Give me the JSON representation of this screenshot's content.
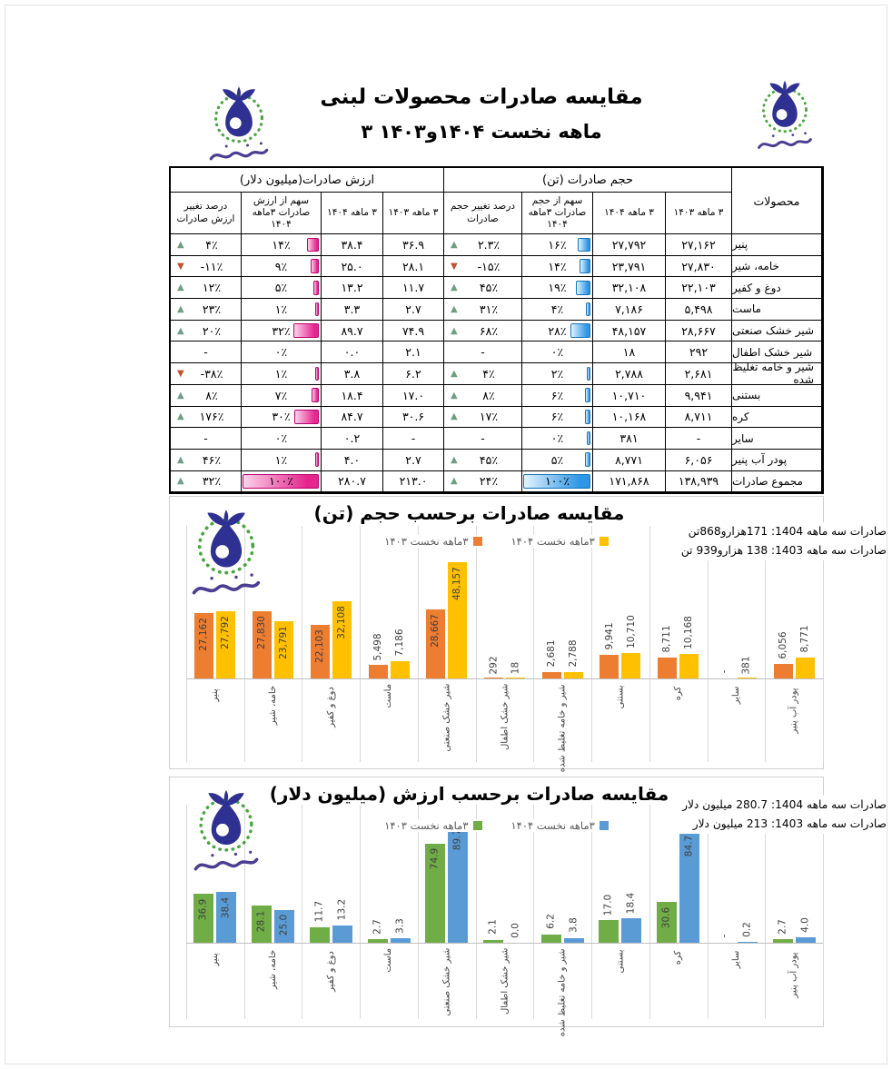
{
  "page": {
    "title_line1": "مقایسه صادرات محصولات لبنی",
    "title_line2": "۳ ماهه نخست ۱۴۰۴و۱۴۰۳"
  },
  "colors": {
    "orange_1403": "#ED7D31",
    "yellow_1404": "#FFC000",
    "green_1403": "#70AD47",
    "blue_1404": "#5B9BD5",
    "table_value_bar_pink": "#E6258F",
    "table_volume_bar_blue": "#3FA7EA",
    "up_triangle": "#6F9E83",
    "down_triangle": "#C0522D"
  },
  "table": {
    "group_headers": {
      "value": "ارزش صادرات(میلیون دلار)",
      "volume": "حجم صادرات (تن)",
      "products": "محصولات"
    },
    "col_headers": {
      "value_change": "درصد تغییر ارزش صادرات",
      "value_share": "سهم از ارزش صادرات ۳ماهه ۱۴۰۴",
      "value_1404": "۳ ماهه ۱۴۰۴",
      "value_1403": "۳ ماهه ۱۴۰۳",
      "volume_change": "درصد تغییر حجم صادرات",
      "volume_share": "سهم از حجم صادرات ۳ماهه ۱۴۰۴",
      "volume_1404": "۳ ماهه ۱۴۰۴",
      "volume_1403": "۳ ماهه ۱۴۰۳"
    },
    "rows": [
      {
        "product": "پنیر",
        "value_change": {
          "dir": "up",
          "text": "۴٪"
        },
        "value_share": {
          "text": "۱۴٪",
          "bar": 14
        },
        "value_1404": "۳۸.۴",
        "value_1403": "۳۶.۹",
        "volume_change": {
          "dir": "up",
          "text": "۲.۳٪"
        },
        "volume_share": {
          "text": "۱۶٪",
          "bar": 16
        },
        "volume_1404": "۲۷,۷۹۲",
        "volume_1403": "۲۷,۱۶۲",
        "total": false
      },
      {
        "product": "خامه، شیر",
        "value_change": {
          "dir": "down",
          "text": "-۱۱٪"
        },
        "value_share": {
          "text": "۹٪",
          "bar": 9
        },
        "value_1404": "۲۵.۰",
        "value_1403": "۲۸.۱",
        "volume_change": {
          "dir": "down",
          "text": "-۱۵٪"
        },
        "volume_share": {
          "text": "۱۴٪",
          "bar": 14
        },
        "volume_1404": "۲۳,۷۹۱",
        "volume_1403": "۲۷,۸۳۰",
        "total": false
      },
      {
        "product": "دوغ و کفیر",
        "value_change": {
          "dir": "up",
          "text": "۱۲٪"
        },
        "value_share": {
          "text": "۵٪",
          "bar": 5
        },
        "value_1404": "۱۳.۲",
        "value_1403": "۱۱.۷",
        "volume_change": {
          "dir": "up",
          "text": "۴۵٪"
        },
        "volume_share": {
          "text": "۱۹٪",
          "bar": 19
        },
        "volume_1404": "۳۲,۱۰۸",
        "volume_1403": "۲۲,۱۰۳",
        "total": false
      },
      {
        "product": "ماست",
        "value_change": {
          "dir": "up",
          "text": "۲۳٪"
        },
        "value_share": {
          "text": "۱٪",
          "bar": 1
        },
        "value_1404": "۳.۳",
        "value_1403": "۲.۷",
        "volume_change": {
          "dir": "up",
          "text": "۳۱٪"
        },
        "volume_share": {
          "text": "۴٪",
          "bar": 4
        },
        "volume_1404": "۷,۱۸۶",
        "volume_1403": "۵,۴۹۸",
        "total": false
      },
      {
        "product": "شیر خشک صنعتی",
        "value_change": {
          "dir": "up",
          "text": "۲۰٪"
        },
        "value_share": {
          "text": "۳۲٪",
          "bar": 32
        },
        "value_1404": "۸۹.۷",
        "value_1403": "۷۴.۹",
        "volume_change": {
          "dir": "up",
          "text": "۶۸٪"
        },
        "volume_share": {
          "text": "۲۸٪",
          "bar": 28
        },
        "volume_1404": "۴۸,۱۵۷",
        "volume_1403": "۲۸,۶۶۷",
        "total": false
      },
      {
        "product": "شیر خشک اطفال",
        "value_change": {
          "dir": null,
          "text": "-"
        },
        "value_share": {
          "text": "۰٪",
          "bar": null
        },
        "value_1404": "۰.۰",
        "value_1403": "۲.۱",
        "volume_change": {
          "dir": null,
          "text": "-"
        },
        "volume_share": {
          "text": "۰٪",
          "bar": null
        },
        "volume_1404": "۱۸",
        "volume_1403": "۲۹۲",
        "total": false
      },
      {
        "product": "شیر و خامه تغلیظ شده",
        "value_change": {
          "dir": "down",
          "text": "-۳۸٪"
        },
        "value_share": {
          "text": "۱٪",
          "bar": 1
        },
        "value_1404": "۳.۸",
        "value_1403": "۶.۲",
        "volume_change": {
          "dir": "up",
          "text": "۴٪"
        },
        "volume_share": {
          "text": "۲٪",
          "bar": 2
        },
        "volume_1404": "۲,۷۸۸",
        "volume_1403": "۲,۶۸۱",
        "total": false
      },
      {
        "product": "بستنی",
        "value_change": {
          "dir": "up",
          "text": "۸٪"
        },
        "value_share": {
          "text": "۷٪",
          "bar": 7
        },
        "value_1404": "۱۸.۴",
        "value_1403": "۱۷.۰",
        "volume_change": {
          "dir": "up",
          "text": "۸٪"
        },
        "volume_share": {
          "text": "۶٪",
          "bar": 6
        },
        "volume_1404": "۱۰,۷۱۰",
        "volume_1403": "۹,۹۴۱",
        "total": false
      },
      {
        "product": "کره",
        "value_change": {
          "dir": "up",
          "text": "۱۷۶٪"
        },
        "value_share": {
          "text": "۳۰٪",
          "bar": 30
        },
        "value_1404": "۸۴.۷",
        "value_1403": "۳۰.۶",
        "volume_change": {
          "dir": "up",
          "text": "۱۷٪"
        },
        "volume_share": {
          "text": "۶٪",
          "bar": 6
        },
        "volume_1404": "۱۰,۱۶۸",
        "volume_1403": "۸,۷۱۱",
        "total": false
      },
      {
        "product": "سایر",
        "value_change": {
          "dir": null,
          "text": "-"
        },
        "value_share": {
          "text": "۰٪",
          "bar": null
        },
        "value_1404": "۰.۲",
        "value_1403": "-",
        "volume_change": {
          "dir": null,
          "text": "-"
        },
        "volume_share": {
          "text": "۰٪",
          "bar": 0.5
        },
        "volume_1404": "۳۸۱",
        "volume_1403": "-",
        "total": false
      },
      {
        "product": "پودر آب پنیر",
        "value_change": {
          "dir": "up",
          "text": "۴۶٪"
        },
        "value_share": {
          "text": "۱٪",
          "bar": 1
        },
        "value_1404": "۴.۰",
        "value_1403": "۲.۷",
        "volume_change": {
          "dir": "up",
          "text": "۴۵٪"
        },
        "volume_share": {
          "text": "۵٪",
          "bar": 5
        },
        "volume_1404": "۸,۷۷۱",
        "volume_1403": "۶,۰۵۶",
        "total": false
      },
      {
        "product": "مجموع صادرات",
        "value_change": {
          "dir": "up",
          "text": "۳۲٪"
        },
        "value_share": {
          "text": "۱۰۰٪",
          "bar": 100
        },
        "value_1404": "۲۸۰.۷",
        "value_1403": "۲۱۳.۰",
        "volume_change": {
          "dir": "up",
          "text": "۲۴٪"
        },
        "volume_share": {
          "text": "۱۰۰٪",
          "bar": 100
        },
        "volume_1404": "۱۷۱,۸۶۸",
        "volume_1403": "۱۳۸,۹۳۹",
        "total": true
      }
    ]
  },
  "chart_data": [
    {
      "type": "bar",
      "title": "مقایسه صادرات برحسب حجم (تن)",
      "categories": [
        "پنیر",
        "خامه، شیر",
        "دوغ و کفیر",
        "ماست",
        "شیر خشک صنعتی",
        "شیر خشک اطفال",
        "شیر و خامه تغلیظ شده",
        "بستنی",
        "کره",
        "سایر",
        "پودر آب پنیر"
      ],
      "series": [
        {
          "name": "۳ماهه نخست ۱۴۰۳",
          "color": "#ED7D31",
          "values": [
            27162,
            27830,
            22103,
            5498,
            28667,
            292,
            2681,
            9941,
            8711,
            null,
            6056
          ],
          "labels": [
            "27,162",
            "27,830",
            "22,103",
            "5,498",
            "28,667",
            "292",
            "2,681",
            "9,941",
            "8,711",
            "-",
            "6,056"
          ]
        },
        {
          "name": "۳ماهه نخست ۱۴۰۴",
          "color": "#FFC000",
          "values": [
            27792,
            23791,
            32108,
            7186,
            48157,
            18,
            2788,
            10710,
            10168,
            381,
            8771
          ],
          "labels": [
            "27,792",
            "23,791",
            "32,108",
            "7,186",
            "48,157",
            "18",
            "2,788",
            "10,710",
            "10,168",
            "381",
            "8,771"
          ]
        }
      ],
      "annotations": [
        "صادرات سه ماهه 1404: 171هزارو868تن",
        "صادرات سه ماهه 1403: 138 هزارو939 تن"
      ],
      "ylim": [
        0,
        50000
      ],
      "legend_position": "top",
      "grid": "vertical-category-lines"
    },
    {
      "type": "bar",
      "title": "مقایسه صادرات برحسب ارزش (میلیون دلار)",
      "categories": [
        "پنیر",
        "خامه، شیر",
        "دوغ و کفیر",
        "ماست",
        "شیر خشک صنعتی",
        "شیر خشک اطفال",
        "شیر و خامه تغلیظ شده",
        "بستنی",
        "کره",
        "سایر",
        "پودر آب پنیر"
      ],
      "series": [
        {
          "name": "۳ماهه نخست ۱۴۰۳",
          "color": "#70AD47",
          "values": [
            36.9,
            28.1,
            11.7,
            2.7,
            74.9,
            2.1,
            6.2,
            17.0,
            30.6,
            null,
            2.7
          ],
          "labels": [
            "36.9",
            "28.1",
            "11.7",
            "2.7",
            "74.9",
            "2.1",
            "6.2",
            "17.0",
            "30.6",
            "-",
            "2.7"
          ]
        },
        {
          "name": "۳ماهه نخست ۱۴۰۴",
          "color": "#5B9BD5",
          "values": [
            38.4,
            25.0,
            13.2,
            3.3,
            89.7,
            0.0,
            3.8,
            18.4,
            84.7,
            0.2,
            4.0
          ],
          "labels": [
            "38.4",
            "25.0",
            "13.2",
            "3.3",
            "89.7",
            "0.0",
            "3.8",
            "18.4",
            "84.7",
            "0.2",
            "4.0"
          ]
        }
      ],
      "annotations": [
        "صادرات سه ماهه 1404: 280.7 میلیون دلار",
        "صادرات سه ماهه 1403: 213 میلیون دلار"
      ],
      "ylim": [
        0,
        95
      ],
      "legend_position": "top",
      "grid": "vertical-category-lines"
    }
  ]
}
